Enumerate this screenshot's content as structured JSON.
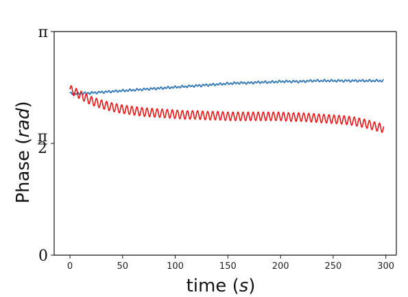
{
  "chart_data": {
    "type": "line",
    "title": "",
    "xlabel_main": "time (",
    "xlabel_italic": "s",
    "xlabel_close": ")",
    "ylabel_main": "Phase (",
    "ylabel_italic": "rad",
    "ylabel_close": ")",
    "xlim": [
      -15,
      310
    ],
    "ylim": [
      0,
      3.14159
    ],
    "x_ticks": [
      0,
      50,
      100,
      150,
      200,
      250,
      300
    ],
    "x_tick_labels": [
      "0",
      "50",
      "100",
      "150",
      "200",
      "250",
      "300"
    ],
    "y_ticks": [
      0,
      1.5708,
      3.14159
    ],
    "y_tick_labels": [
      "0",
      "π/2",
      "π"
    ],
    "grid": false,
    "series": [
      {
        "color": "#2e75b6",
        "x": [
          0,
          10,
          20,
          30,
          40,
          50,
          60,
          70,
          80,
          90,
          100,
          110,
          120,
          130,
          140,
          150,
          160,
          170,
          180,
          190,
          200,
          210,
          220,
          230,
          240,
          250,
          260,
          270,
          280,
          290,
          298
        ],
        "values": [
          2.27,
          2.27,
          2.28,
          2.29,
          2.3,
          2.31,
          2.32,
          2.33,
          2.34,
          2.35,
          2.36,
          2.37,
          2.38,
          2.39,
          2.4,
          2.41,
          2.42,
          2.42,
          2.43,
          2.43,
          2.44,
          2.44,
          2.44,
          2.45,
          2.45,
          2.45,
          2.45,
          2.45,
          2.45,
          2.45,
          2.45
        ],
        "ripple_amplitude": 0.012,
        "ripple_period": 3.3
      },
      {
        "color": "#ee1111",
        "x": [
          0,
          10,
          20,
          30,
          40,
          50,
          60,
          70,
          80,
          90,
          100,
          110,
          120,
          130,
          140,
          150,
          160,
          170,
          180,
          190,
          200,
          210,
          220,
          230,
          240,
          250,
          260,
          270,
          280,
          290,
          298
        ],
        "values": [
          2.33,
          2.25,
          2.17,
          2.12,
          2.08,
          2.05,
          2.03,
          2.01,
          2.0,
          1.99,
          1.98,
          1.97,
          1.97,
          1.96,
          1.96,
          1.95,
          1.95,
          1.95,
          1.95,
          1.95,
          1.95,
          1.94,
          1.94,
          1.93,
          1.92,
          1.91,
          1.9,
          1.88,
          1.85,
          1.81,
          1.78
        ],
        "ripple_amplitude": 0.06,
        "ripple_period": 4.8
      }
    ]
  }
}
